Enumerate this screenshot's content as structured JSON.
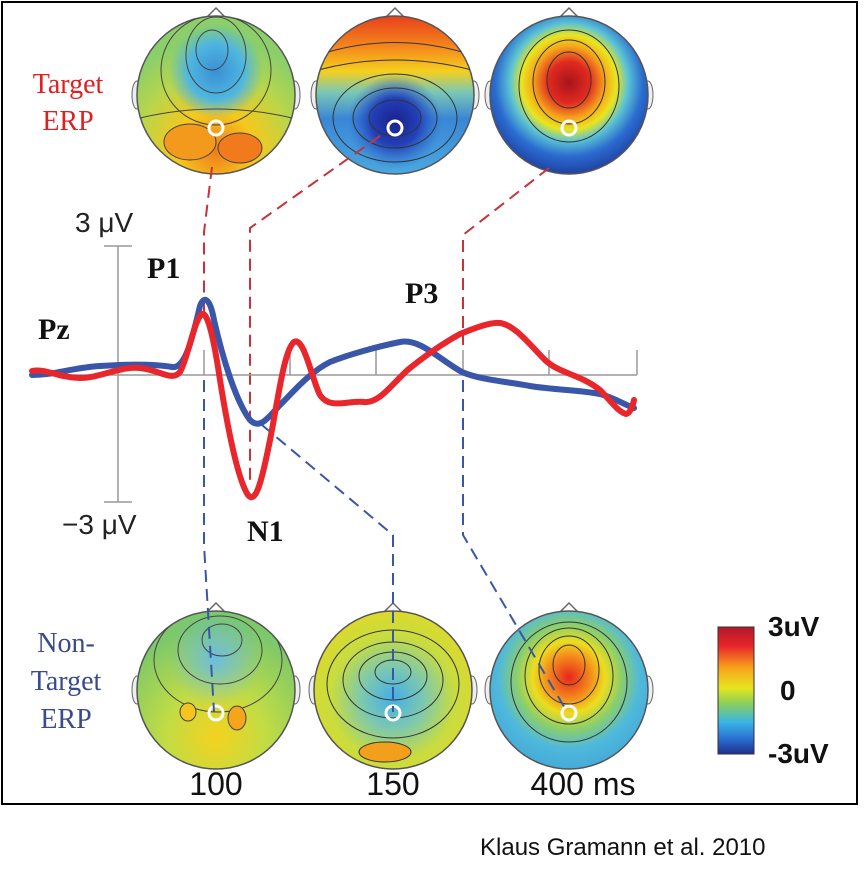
{
  "labels": {
    "target_line1": "Target",
    "target_line2": "ERP",
    "nontarget_line1": "Non-",
    "nontarget_line2": "Target",
    "nontarget_line3": "ERP",
    "channel": "Pz",
    "y_top": "3 μV",
    "y_bottom": "−3 μV",
    "peak_p1": "P1",
    "peak_n1": "N1",
    "peak_p3": "P3",
    "time_1": "100",
    "time_2": "150",
    "time_3": "400 ms",
    "colorbar_max": "3uV",
    "colorbar_mid": "0",
    "colorbar_min": "-3uV"
  },
  "credit": "Klaus Gramann et al. 2010",
  "colors": {
    "target": "#e8262b",
    "nontarget": "#3a56a8",
    "target_label": "#e02020",
    "nontarget_label": "#3a4a8a"
  }
}
